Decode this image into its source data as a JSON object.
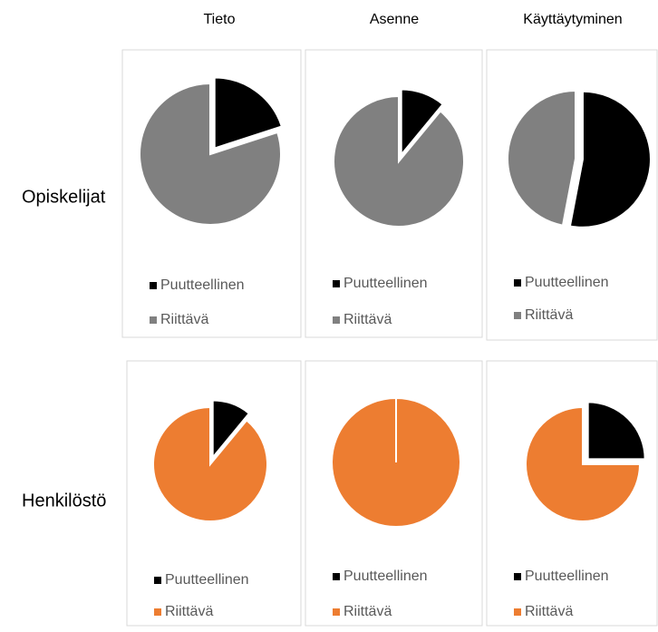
{
  "columns": [
    "Tieto",
    "Asenne",
    "Käyttäytyminen"
  ],
  "rows": [
    "Opiskelijat",
    "Henkilöstö"
  ],
  "chart_data": [
    {
      "type": "pie",
      "categories": [
        "Puutteellinen",
        "Riittävä"
      ],
      "values": [
        20,
        80
      ],
      "colors": [
        "#000000",
        "#808080"
      ]
    },
    {
      "type": "pie",
      "categories": [
        "Puutteellinen",
        "Riittävä"
      ],
      "values": [
        11,
        89
      ],
      "colors": [
        "#000000",
        "#808080"
      ]
    },
    {
      "type": "pie",
      "categories": [
        "Puutteellinen",
        "Riittävä"
      ],
      "values": [
        53,
        47
      ],
      "colors": [
        "#000000",
        "#808080"
      ]
    },
    {
      "type": "pie",
      "categories": [
        "Puutteellinen",
        "Riittävä"
      ],
      "values": [
        11,
        89
      ],
      "colors": [
        "#000000",
        "#ed7d31"
      ]
    },
    {
      "type": "pie",
      "categories": [
        "Puutteellinen",
        "Riittävä"
      ],
      "values": [
        0,
        100
      ],
      "colors": [
        "#000000",
        "#ed7d31"
      ]
    },
    {
      "type": "pie",
      "categories": [
        "Puutteellinen",
        "Riittävä"
      ],
      "values": [
        25,
        75
      ],
      "colors": [
        "#000000",
        "#ed7d31"
      ]
    }
  ]
}
